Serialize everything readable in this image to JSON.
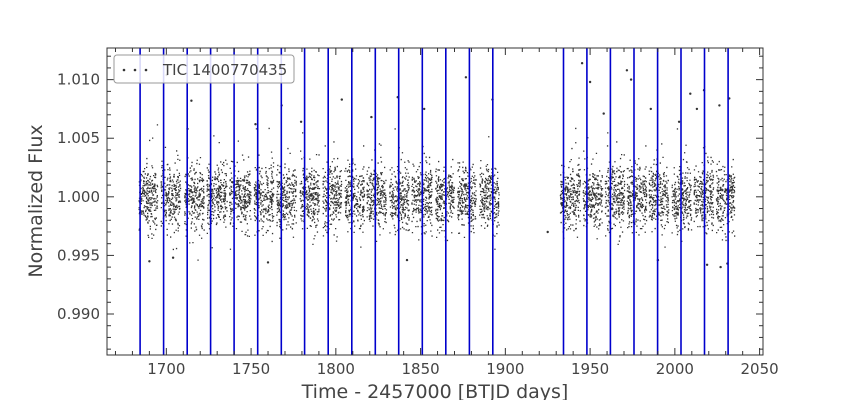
{
  "chart_data": {
    "type": "scatter",
    "title": "",
    "xlabel": "Time - 2457000 [BTJD days]",
    "ylabel": "Normalized Flux",
    "xlim": [
      1665,
      2052
    ],
    "ylim": [
      0.9865,
      1.0127
    ],
    "x_ticks": [
      1700,
      1750,
      1800,
      1850,
      1900,
      1950,
      2000,
      2050
    ],
    "y_ticks": [
      0.99,
      0.995,
      1.0,
      1.005,
      1.01
    ],
    "x_tick_labels": [
      "1700",
      "1750",
      "1800",
      "1850",
      "1900",
      "1950",
      "2000",
      "2050"
    ],
    "y_tick_labels": [
      "0.990",
      "0.995",
      "1.000",
      "1.005",
      "1.010"
    ],
    "grid": false,
    "legend": {
      "position": "top-left",
      "entries": [
        "TIC 1400770435"
      ]
    },
    "series": [
      {
        "name": "TIC 1400770435",
        "marker": "dot",
        "color": "#333333",
        "baseline": 1.0,
        "typical_scatter_range": [
          0.9965,
          1.0035
        ],
        "x_segments": [
          [
            1683.5,
            1694.5
          ],
          [
            1696.5,
            1708.0
          ],
          [
            1710.5,
            1722.0
          ],
          [
            1723.5,
            1735.5
          ],
          [
            1737.0,
            1749.5
          ],
          [
            1751.5,
            1763.0
          ],
          [
            1764.5,
            1776.5
          ],
          [
            1778.5,
            1790.0
          ],
          [
            1792.0,
            1803.0
          ],
          [
            1805.0,
            1816.5
          ],
          [
            1818.0,
            1829.5
          ],
          [
            1831.5,
            1843.0
          ],
          [
            1844.5,
            1856.5
          ],
          [
            1858.5,
            1869.5
          ],
          [
            1871.5,
            1882.5
          ],
          [
            1884.5,
            1896.0
          ],
          [
            1932.0,
            1944.0
          ],
          [
            1945.5,
            1957.0
          ],
          [
            1958.5,
            1970.0
          ],
          [
            1971.5,
            1983.0
          ],
          [
            1984.5,
            1996.0
          ],
          [
            1998.0,
            2009.5
          ],
          [
            2011.0,
            2022.5
          ],
          [
            2024.0,
            2035.0
          ]
        ],
        "outliers": [
          [
            1700.2,
            1.0104
          ],
          [
            1714.8,
            1.0082
          ],
          [
            1712.5,
            1.0058
          ],
          [
            1752.6,
            1.0062
          ],
          [
            1768.0,
            1.0078
          ],
          [
            1779.5,
            1.0064
          ],
          [
            1803.5,
            1.0083
          ],
          [
            1821.0,
            1.0068
          ],
          [
            1836.5,
            1.0085
          ],
          [
            1852.1,
            1.0075
          ],
          [
            1876.7,
            1.0102
          ],
          [
            1892.4,
            1.0083
          ],
          [
            1945.3,
            1.0114
          ],
          [
            1950.0,
            1.0098
          ],
          [
            1958.0,
            1.0071
          ],
          [
            1971.7,
            1.0108
          ],
          [
            1974.2,
            1.01
          ],
          [
            1985.8,
            1.0075
          ],
          [
            2002.5,
            1.0064
          ],
          [
            2009.1,
            1.0088
          ],
          [
            2013.0,
            1.0075
          ],
          [
            2017.2,
            1.0091
          ],
          [
            2026.3,
            1.0078
          ],
          [
            2032.1,
            1.0084
          ],
          [
            1690.0,
            0.9945
          ],
          [
            1704.0,
            0.9948
          ],
          [
            1760.0,
            0.9944
          ],
          [
            1842.0,
            0.9946
          ],
          [
            1925.0,
            0.997
          ],
          [
            1990.0,
            0.9946
          ],
          [
            2019.0,
            0.9942
          ],
          [
            2027.0,
            0.994
          ],
          [
            2031.0,
            0.9943
          ]
        ]
      }
    ],
    "vertical_lines": {
      "color": "#0000cc",
      "x": [
        1684.5,
        1698.4,
        1712.3,
        1726.1,
        1740.0,
        1753.9,
        1767.8,
        1781.6,
        1795.5,
        1809.4,
        1823.3,
        1837.1,
        1851.0,
        1864.9,
        1878.8,
        1892.6,
        1934.3,
        1948.1,
        1962.0,
        1975.9,
        1989.8,
        2003.6,
        2017.5,
        2031.4
      ]
    }
  }
}
